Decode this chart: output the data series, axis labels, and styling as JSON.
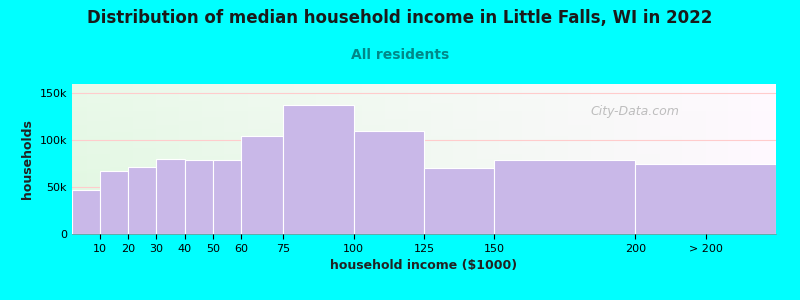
{
  "title": "Distribution of median household income in Little Falls, WI in 2022",
  "subtitle": "All residents",
  "xlabel": "household income ($1000)",
  "ylabel": "households",
  "bar_labels": [
    "10",
    "20",
    "30",
    "40",
    "50",
    "60",
    "75",
    "100",
    "125",
    "150",
    "200",
    "> 200"
  ],
  "bar_values": [
    47000,
    67000,
    72000,
    80000,
    79000,
    79000,
    105000,
    138000,
    110000,
    70000,
    79000,
    75000
  ],
  "bar_color": "#c9b8e8",
  "bar_edgecolor": "#ffffff",
  "background_color": "#00ffff",
  "ylim": [
    0,
    160000
  ],
  "yticks": [
    0,
    50000,
    100000,
    150000
  ],
  "ytick_labels": [
    "0",
    "50k",
    "100k",
    "150k"
  ],
  "title_fontsize": 12,
  "subtitle_fontsize": 10,
  "title_color": "#1a1a1a",
  "subtitle_color": "#008888",
  "axis_label_fontsize": 9,
  "tick_fontsize": 8,
  "watermark": "City-Data.com",
  "watermark_color": "#aaaaaa",
  "grid_color": "#ffcccc",
  "lefts": [
    0,
    10,
    20,
    30,
    40,
    50,
    60,
    75,
    100,
    125,
    150,
    200
  ],
  "rights": [
    10,
    20,
    30,
    40,
    50,
    60,
    75,
    100,
    125,
    150,
    200,
    250
  ],
  "xtick_positions": [
    10,
    20,
    30,
    40,
    50,
    60,
    75,
    100,
    125,
    150,
    200,
    225
  ],
  "xtick_labels": [
    "10",
    "20",
    "30",
    "40",
    "50",
    "60",
    "75",
    "100",
    "125",
    "150",
    "200",
    "> 200"
  ]
}
